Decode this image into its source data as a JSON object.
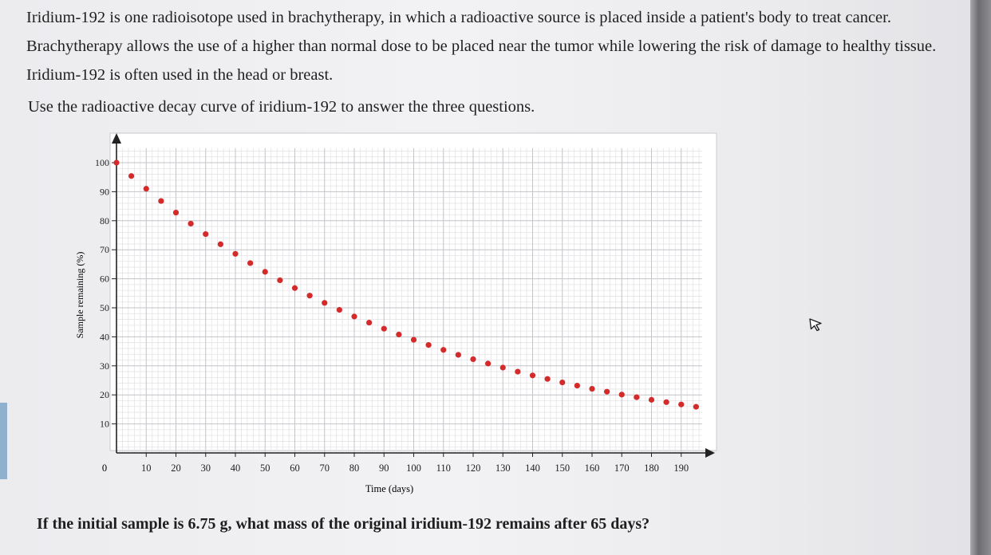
{
  "text": {
    "intro": "Iridium-192 is one radioisotope used in brachytherapy, in which a radioactive source is placed inside a patient's body to treat cancer. Brachytherapy allows the use of a higher than normal dose to be placed near the tumor while lowering the risk of damage to healthy tissue. Iridium-192 is often used in the head or breast.",
    "instruction": "Use the radioactive decay curve of iridium-192 to answer the three questions.",
    "question": "If the initial sample is 6.75 g, what mass of the original iridium-192 remains after 65 days?"
  },
  "chart_data": {
    "type": "scatter",
    "title": "",
    "xlabel": "Time (days)",
    "ylabel": "Sample remaining (%)",
    "xlim": [
      0,
      197
    ],
    "ylim": [
      0,
      105
    ],
    "x_ticks": [
      10,
      20,
      30,
      40,
      50,
      60,
      70,
      80,
      90,
      100,
      110,
      120,
      130,
      140,
      150,
      160,
      170,
      180,
      190
    ],
    "x_tick_labels": [
      "10",
      "20",
      "30",
      "40",
      "50",
      "60",
      "70",
      "80",
      "90",
      "100",
      "110",
      "120",
      "130",
      "140",
      "150",
      "160",
      "170",
      "180",
      "190"
    ],
    "y_ticks": [
      10,
      20,
      30,
      40,
      50,
      60,
      70,
      80,
      90,
      100
    ],
    "y_tick_labels": [
      "10",
      "20",
      "30",
      "40",
      "50",
      "60",
      "70",
      "80",
      "90",
      "100"
    ],
    "origin_label": "0",
    "grid": true,
    "point_color": "#d42a2a",
    "x": [
      0,
      5,
      10,
      15,
      20,
      25,
      30,
      35,
      40,
      45,
      50,
      55,
      60,
      65,
      70,
      75,
      80,
      85,
      90,
      95,
      100,
      105,
      110,
      115,
      120,
      125,
      130,
      135,
      140,
      145,
      150,
      155,
      160,
      165,
      170,
      175,
      180,
      185,
      190,
      195
    ],
    "y": [
      100,
      95.4,
      91.0,
      86.8,
      82.8,
      79.0,
      75.4,
      71.9,
      68.6,
      65.4,
      62.4,
      59.5,
      56.8,
      54.2,
      51.7,
      49.3,
      47.0,
      44.9,
      42.8,
      40.8,
      39.0,
      37.2,
      35.5,
      33.8,
      32.3,
      30.8,
      29.4,
      28.0,
      26.7,
      25.5,
      24.3,
      23.2,
      22.1,
      21.1,
      20.1,
      19.2,
      18.3,
      17.5,
      16.7,
      15.9
    ]
  }
}
